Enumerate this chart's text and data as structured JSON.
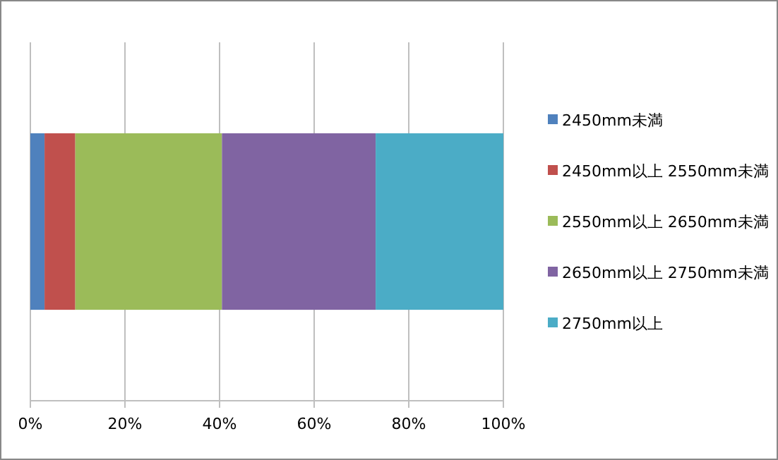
{
  "chart_data": {
    "type": "bar",
    "orientation": "horizontal",
    "stacked": true,
    "categories": [
      null
    ],
    "series": [
      {
        "name": "2450mm未満",
        "color": "#4f81bd",
        "values": [
          3
        ]
      },
      {
        "name": "2450mm以上 2550mm未満",
        "color": "#c0504d",
        "values": [
          6.5
        ]
      },
      {
        "name": "2550mm以上 2650mm未満",
        "color": "#9bbb59",
        "values": [
          31
        ]
      },
      {
        "name": "2650mm以上 2750mm未満",
        "color": "#8064a2",
        "values": [
          32.5
        ]
      },
      {
        "name": "2750mm以上",
        "color": "#4bacc6",
        "values": [
          27
        ]
      }
    ],
    "xlim": [
      0,
      100
    ],
    "xticks": [
      {
        "value": 0,
        "label": "0%"
      },
      {
        "value": 20,
        "label": "20%"
      },
      {
        "value": 40,
        "label": "40%"
      },
      {
        "value": 60,
        "label": "60%"
      },
      {
        "value": 80,
        "label": "80%"
      },
      {
        "value": 100,
        "label": "100%"
      }
    ],
    "grid": "x",
    "legend": "right"
  }
}
